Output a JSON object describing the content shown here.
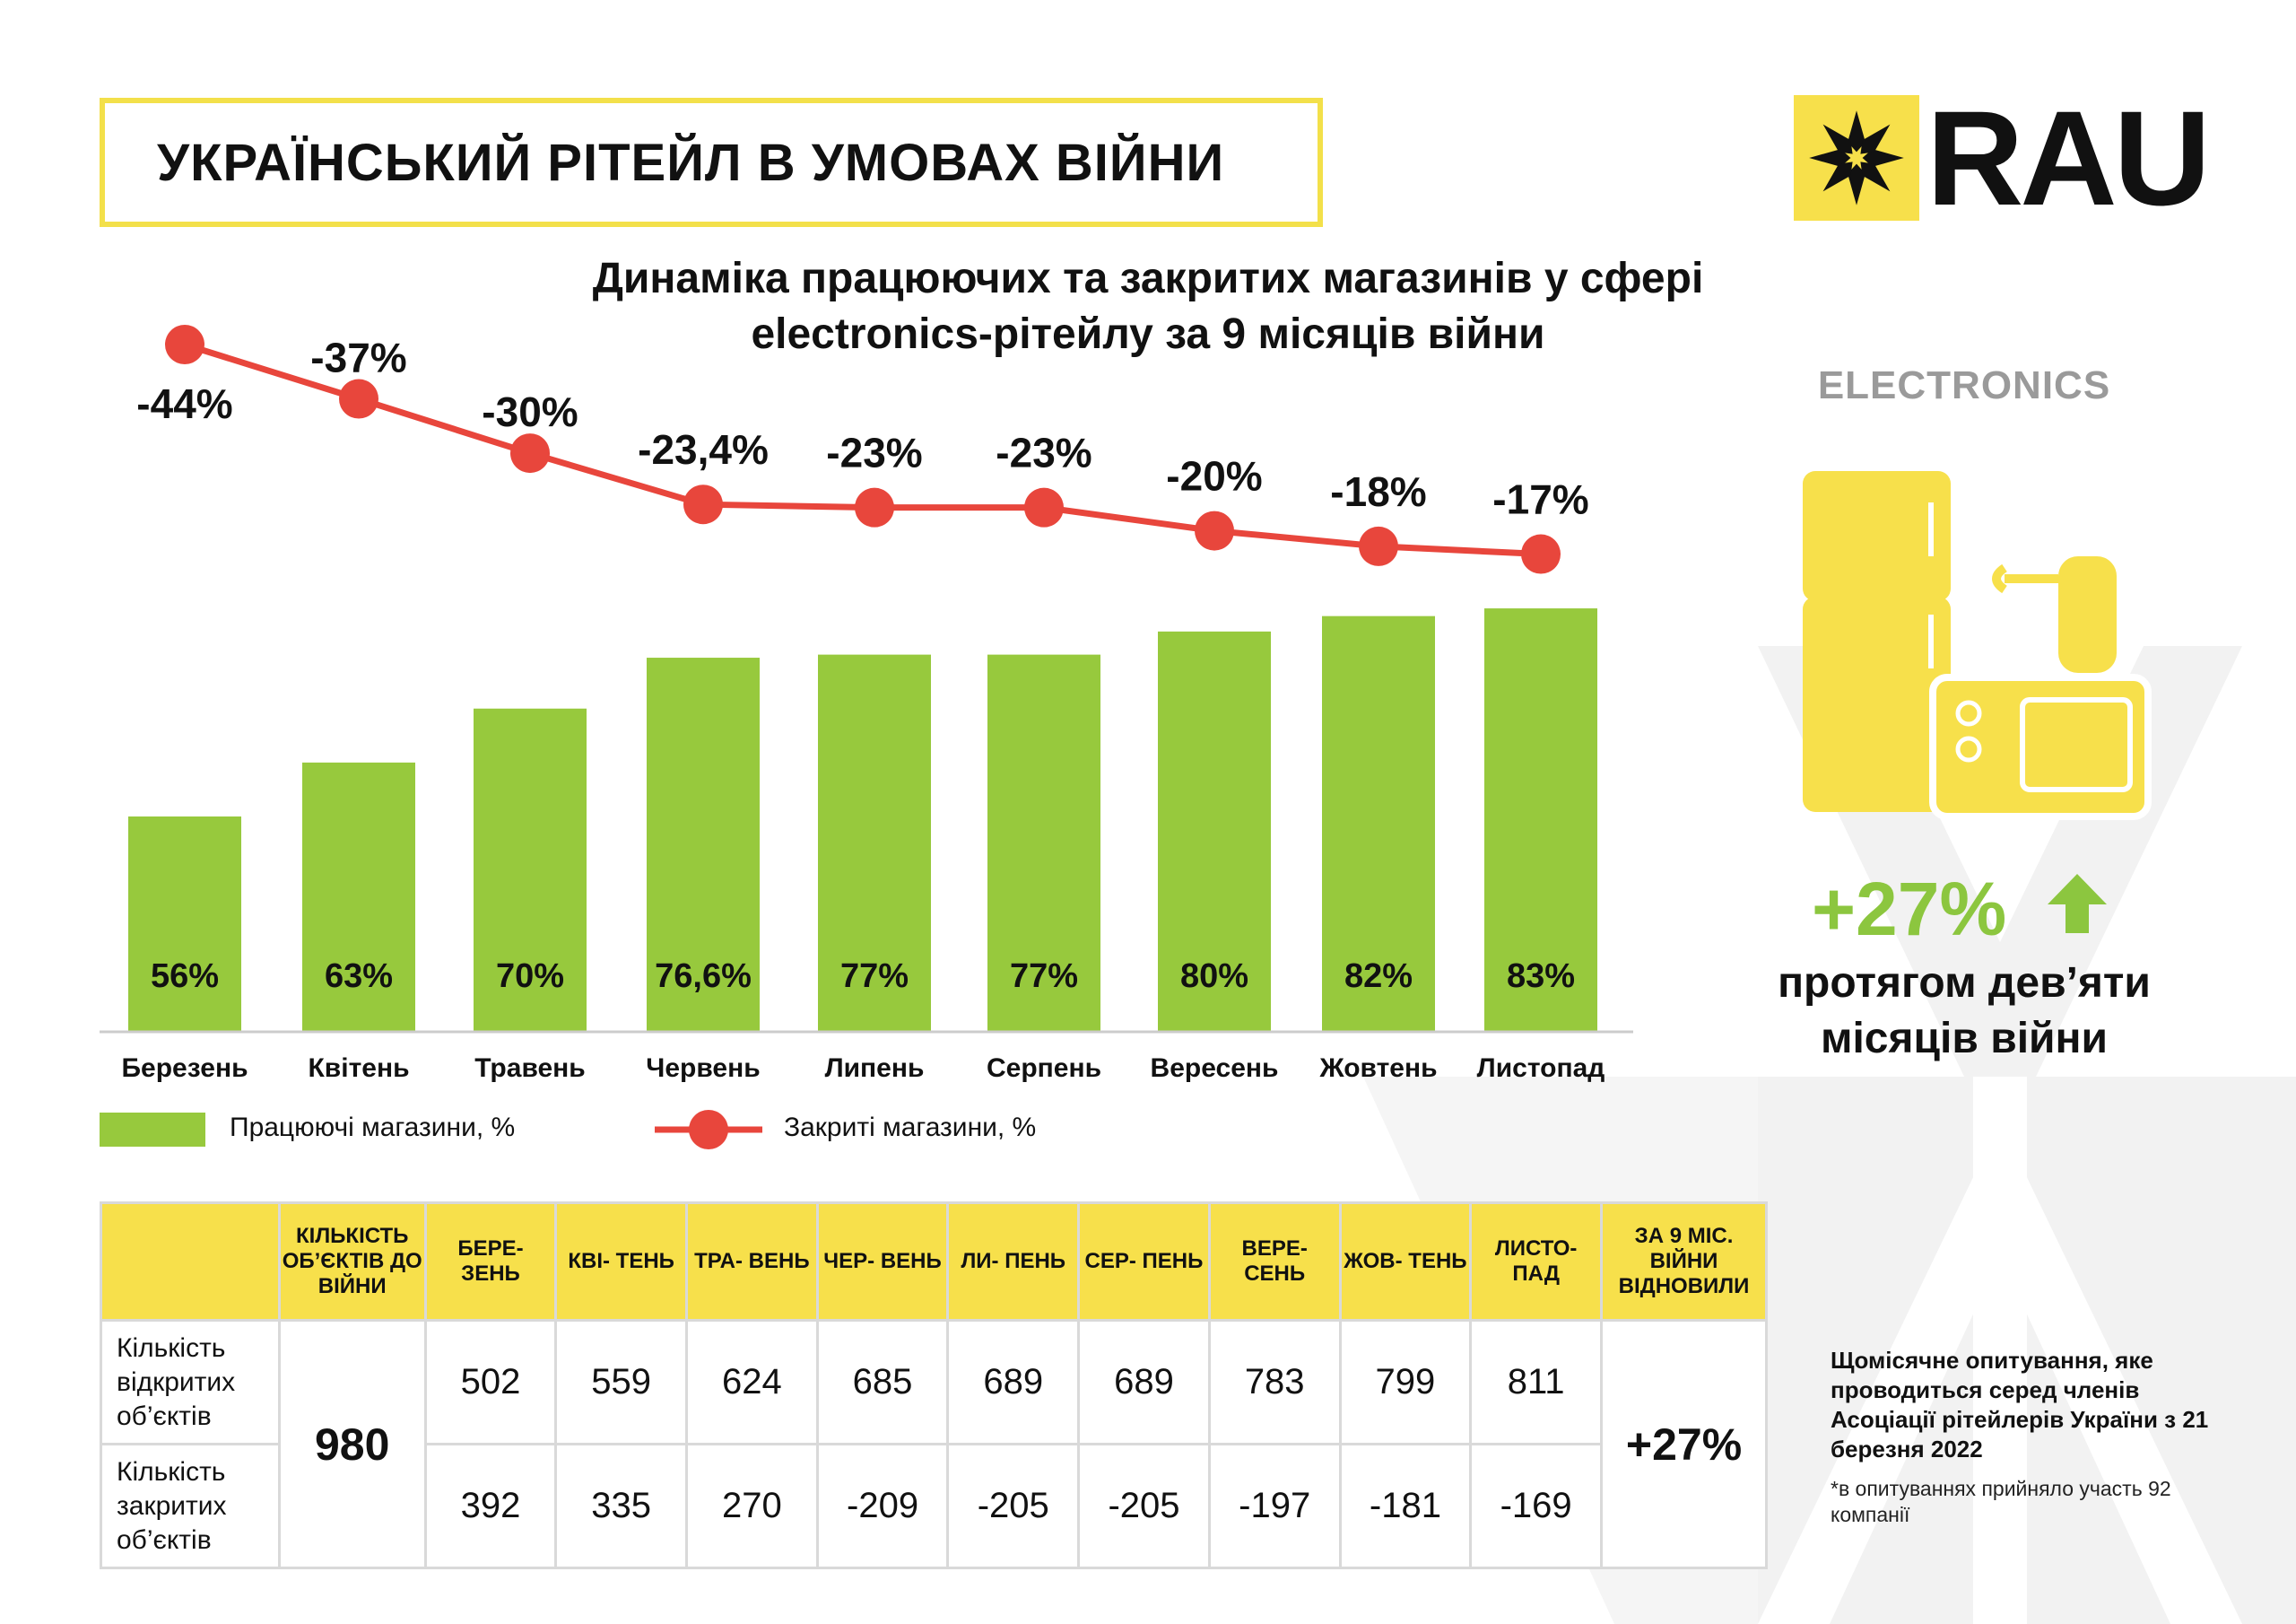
{
  "header": {
    "title": "УКРАЇНСЬКИЙ РІТЕЙЛ В УМОВАХ ВІЙНИ",
    "logo_text": "RAU"
  },
  "colors": {
    "yellow": "#f7e04b",
    "green": "#97c93d",
    "red": "#e8463c",
    "gray": "#9a9a9a"
  },
  "chart_data": {
    "type": "bar+line",
    "title_line1": "Динаміка працюючих та закритих магазинів у сфері",
    "title_line2": "electronics-рітейлу за 9 місяців війни",
    "categories": [
      "Березень",
      "Квітень",
      "Травень",
      "Червень",
      "Липень",
      "Серпень",
      "Вересень",
      "Жовтень",
      "Листопад"
    ],
    "series": [
      {
        "name": "Працюючі магазини, %",
        "type": "bar",
        "values": [
          56,
          63,
          70,
          76.6,
          77,
          77,
          80,
          82,
          83
        ],
        "labels": [
          "56%",
          "63%",
          "70%",
          "76,6%",
          "77%",
          "77%",
          "80%",
          "82%",
          "83%"
        ]
      },
      {
        "name": "Закриті магазини, %",
        "type": "line",
        "values": [
          -44,
          -37,
          -30,
          -23.4,
          -23,
          -23,
          -20,
          -18,
          -17
        ],
        "labels": [
          "-44%",
          "-37%",
          "-30%",
          "-23,4%",
          "-23%",
          "-23%",
          "-20%",
          "-18%",
          "-17%"
        ]
      }
    ],
    "legend": "bottom-left",
    "grid": false
  },
  "table": {
    "headers": [
      "",
      "КІЛЬКІСТЬ ОБ’ЄКТІВ ДО ВІЙНИ",
      "БЕРЕ- ЗЕНЬ",
      "КВІ- ТЕНЬ",
      "ТРА- ВЕНЬ",
      "ЧЕР- ВЕНЬ",
      "ЛИ- ПЕНЬ",
      "СЕР- ПЕНЬ",
      "ВЕРЕ- СЕНЬ",
      "ЖОВ- ТЕНЬ",
      "ЛИСТО- ПАД",
      "ЗА 9 МІС. ВІЙНИ ВІДНОВИЛИ"
    ],
    "prewar": "980",
    "recovered": "+27%",
    "rows": [
      {
        "label": "Кількість відкритих об’єктів",
        "values": [
          "502",
          "559",
          "624",
          "685",
          "689",
          "689",
          "783",
          "799",
          "811"
        ]
      },
      {
        "label": "Кількість закритих об’єктів",
        "values": [
          "392",
          "335",
          "270",
          "-209",
          "-205",
          "-205",
          "-197",
          "-181",
          "-169"
        ]
      }
    ]
  },
  "side": {
    "category": "ELECTRONICS",
    "growth": "+27%",
    "growth_icon": "arrow-up-icon",
    "growth_caption": "протягом дев’яти місяців війни",
    "note": "Щомісячне опитування, яке проводиться серед членів Асоціації рітейлерів України з 21 березня 2022",
    "footnote": "*в опитуваннях прийняло участь 92 компанії"
  }
}
